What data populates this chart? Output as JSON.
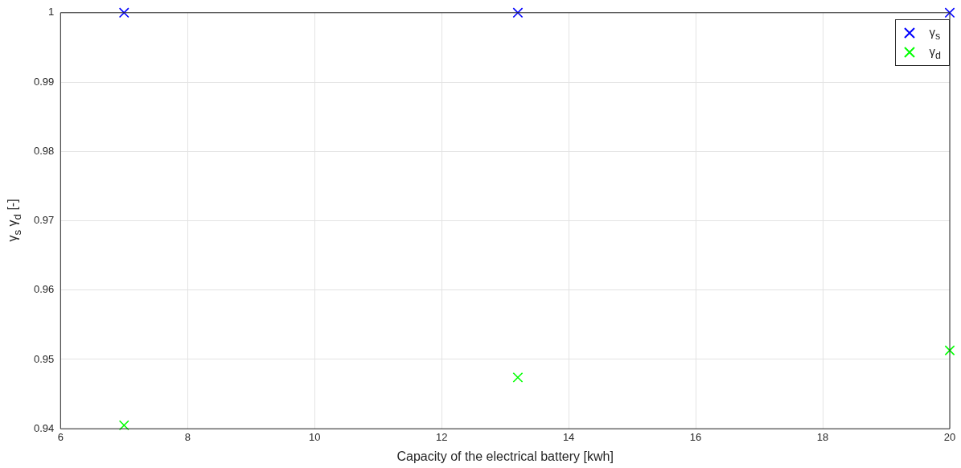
{
  "chart_data": {
    "type": "scatter",
    "xlabel": "Capacity of the electrical battery [kwh]",
    "ylabel": "γ$_{s}$ γ$_{d}$ [-]",
    "x": [
      7,
      13.2,
      20
    ],
    "series": [
      {
        "name": "γ$_{s}$",
        "color": "#0000ff",
        "values": [
          1,
          1,
          1
        ]
      },
      {
        "name": "γ$_{d}$",
        "color": "#00ff00",
        "values": [
          0.9405,
          0.9474,
          0.9513
        ]
      }
    ],
    "xlim": [
      6,
      20
    ],
    "xticks": [
      6,
      8,
      10,
      12,
      14,
      16,
      18,
      20
    ],
    "ylim": [
      0.94,
      1
    ],
    "yticks": [
      0.94,
      0.95,
      0.96,
      0.97,
      0.98,
      0.99,
      1
    ],
    "grid": true,
    "legend": "top right",
    "marker": "cross"
  }
}
